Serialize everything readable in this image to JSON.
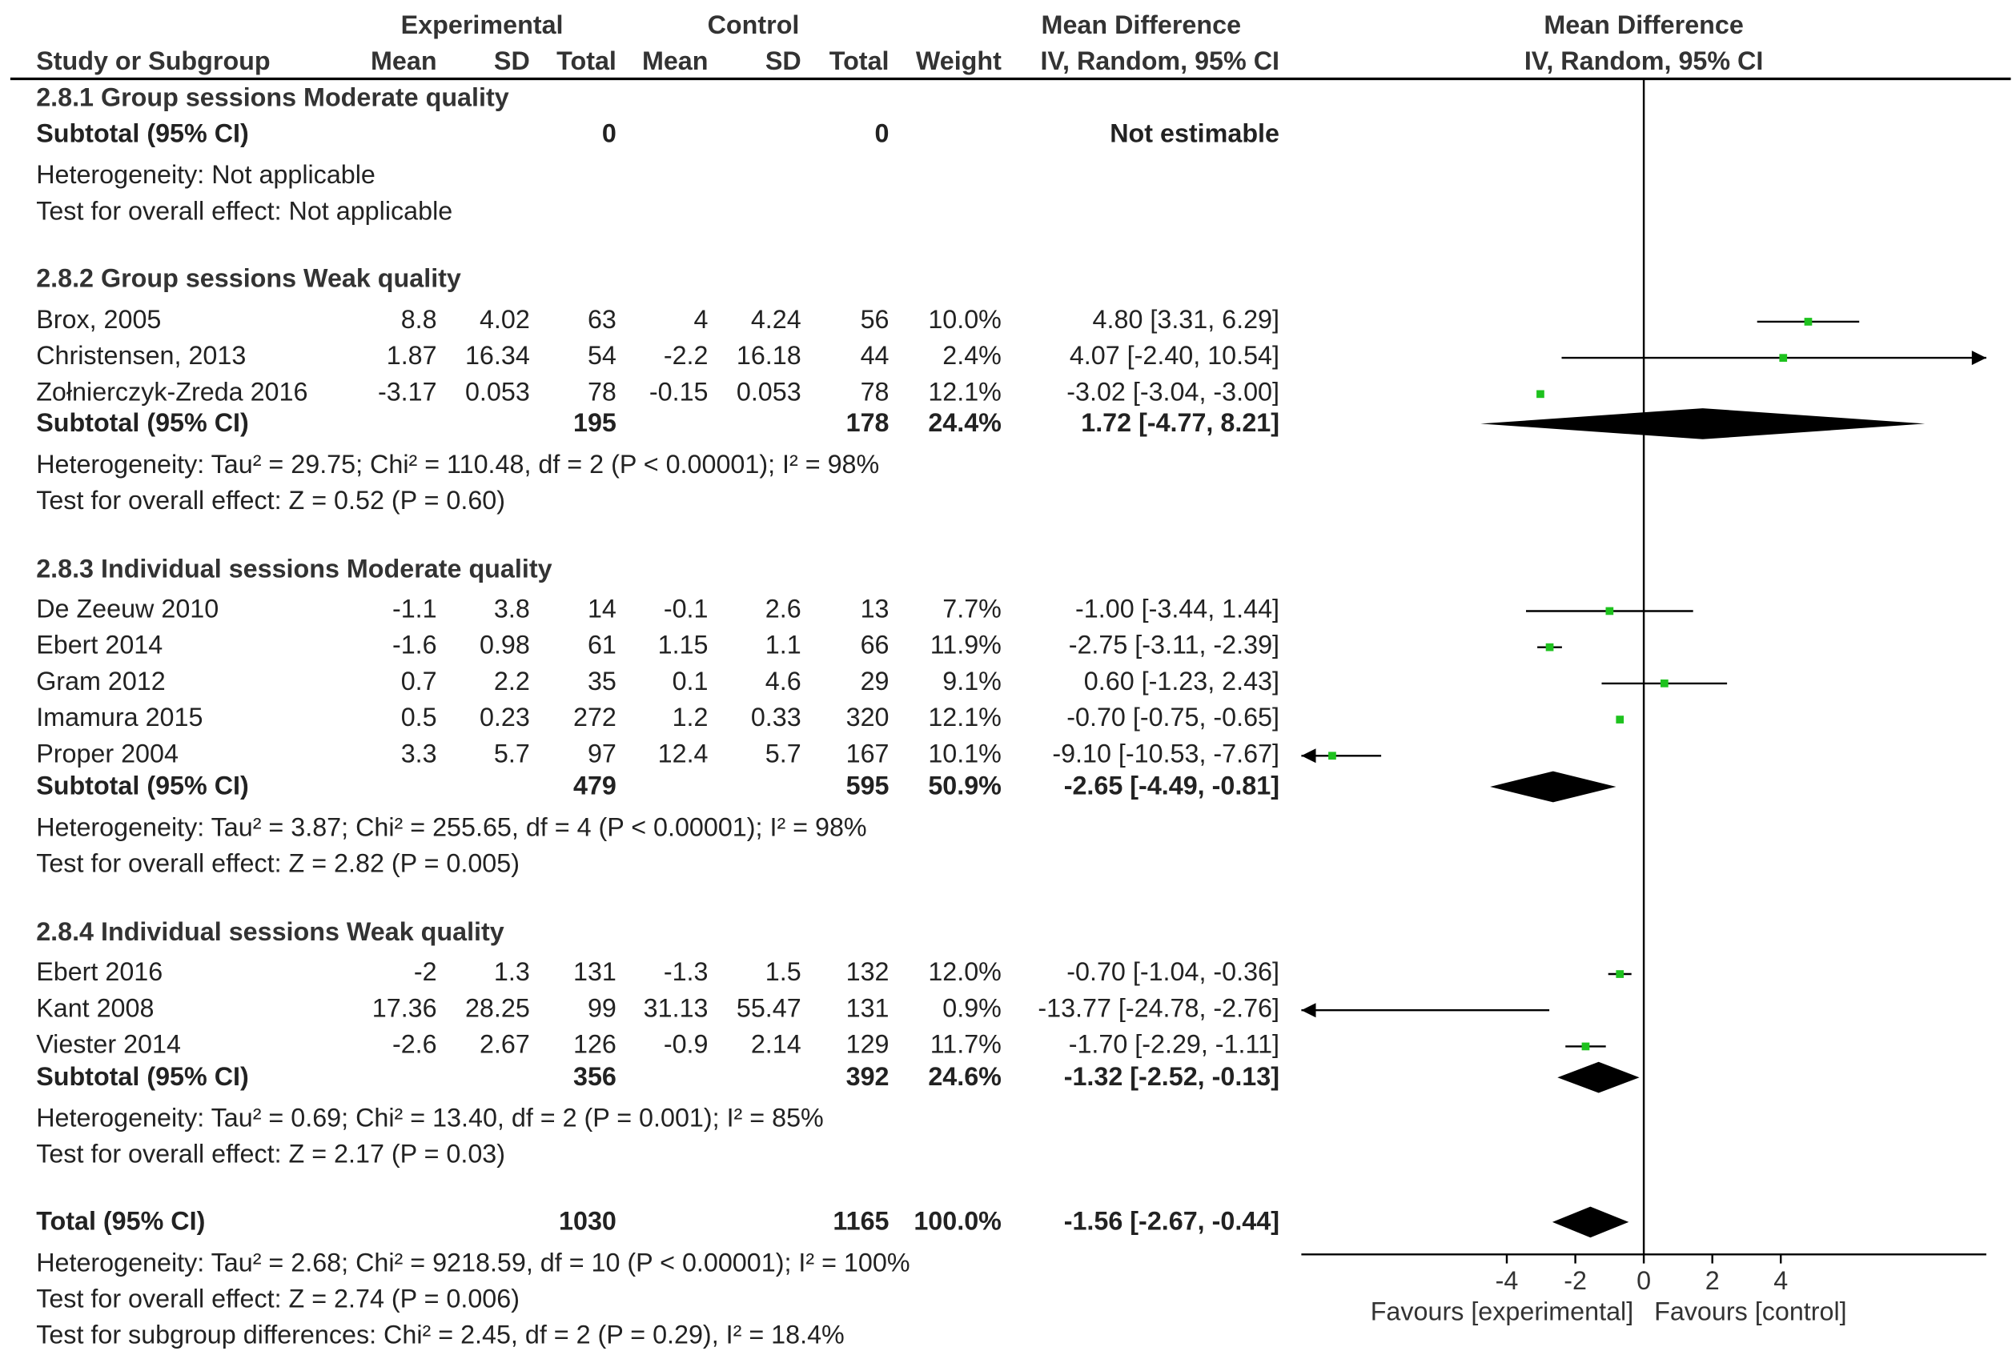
{
  "chart_data": {
    "type": "forest",
    "header": {
      "group_experimental": "Experimental",
      "group_control": "Control",
      "col_mean_difference": "Mean Difference",
      "col_plot_title": "Mean Difference",
      "study": "Study or Subgroup",
      "mean_e": "Mean",
      "sd_e": "SD",
      "total_e": "Total",
      "mean_c": "Mean",
      "sd_c": "SD",
      "total_c": "Total",
      "weight": "Weight",
      "method": "IV, Random, 95% CI",
      "method_plot": "IV, Random, 95% CI"
    },
    "subgroups": [
      {
        "title": "2.8.1 Group sessions Moderate quality",
        "studies": [],
        "subtotal": {
          "label": "Subtotal (95% CI)",
          "total_e": "0",
          "total_c": "0",
          "weight": "",
          "ci_text": "Not estimable",
          "md": null,
          "lo": null,
          "hi": null
        },
        "heterogeneity": "Heterogeneity: Not applicable",
        "overall": "Test for overall effect: Not applicable"
      },
      {
        "title": "2.8.2 Group sessions Weak quality",
        "studies": [
          {
            "name": "Brox, 2005",
            "mean_e": "8.8",
            "sd_e": "4.02",
            "total_e": "63",
            "mean_c": "4",
            "sd_c": "4.24",
            "total_c": "56",
            "weight": "10.0%",
            "ci_text": "4.80 [3.31, 6.29]",
            "md": 4.8,
            "lo": 3.31,
            "hi": 6.29
          },
          {
            "name": "Christensen, 2013",
            "mean_e": "1.87",
            "sd_e": "16.34",
            "total_e": "54",
            "mean_c": "-2.2",
            "sd_c": "16.18",
            "total_c": "44",
            "weight": "2.4%",
            "ci_text": "4.07 [-2.40, 10.54]",
            "md": 4.07,
            "lo": -2.4,
            "hi": 10.54
          },
          {
            "name": "Zołnierczyk-Zreda 2016",
            "mean_e": "-3.17",
            "sd_e": "0.053",
            "total_e": "78",
            "mean_c": "-0.15",
            "sd_c": "0.053",
            "total_c": "78",
            "weight": "12.1%",
            "ci_text": "-3.02 [-3.04, -3.00]",
            "md": -3.02,
            "lo": -3.04,
            "hi": -3.0
          }
        ],
        "subtotal": {
          "label": "Subtotal (95% CI)",
          "total_e": "195",
          "total_c": "178",
          "weight": "24.4%",
          "ci_text": "1.72 [-4.77, 8.21]",
          "md": 1.72,
          "lo": -4.77,
          "hi": 8.21
        },
        "heterogeneity": "Heterogeneity: Tau² = 29.75; Chi² = 110.48, df = 2 (P < 0.00001); I² = 98%",
        "overall": "Test for overall effect: Z = 0.52 (P = 0.60)"
      },
      {
        "title": "2.8.3 Individual sessions Moderate quality",
        "studies": [
          {
            "name": "De Zeeuw 2010",
            "mean_e": "-1.1",
            "sd_e": "3.8",
            "total_e": "14",
            "mean_c": "-0.1",
            "sd_c": "2.6",
            "total_c": "13",
            "weight": "7.7%",
            "ci_text": "-1.00 [-3.44, 1.44]",
            "md": -1.0,
            "lo": -3.44,
            "hi": 1.44
          },
          {
            "name": "Ebert 2014",
            "mean_e": "-1.6",
            "sd_e": "0.98",
            "total_e": "61",
            "mean_c": "1.15",
            "sd_c": "1.1",
            "total_c": "66",
            "weight": "11.9%",
            "ci_text": "-2.75 [-3.11, -2.39]",
            "md": -2.75,
            "lo": -3.11,
            "hi": -2.39
          },
          {
            "name": "Gram 2012",
            "mean_e": "0.7",
            "sd_e": "2.2",
            "total_e": "35",
            "mean_c": "0.1",
            "sd_c": "4.6",
            "total_c": "29",
            "weight": "9.1%",
            "ci_text": "0.60 [-1.23, 2.43]",
            "md": 0.6,
            "lo": -1.23,
            "hi": 2.43
          },
          {
            "name": "Imamura 2015",
            "mean_e": "0.5",
            "sd_e": "0.23",
            "total_e": "272",
            "mean_c": "1.2",
            "sd_c": "0.33",
            "total_c": "320",
            "weight": "12.1%",
            "ci_text": "-0.70 [-0.75, -0.65]",
            "md": -0.7,
            "lo": -0.75,
            "hi": -0.65
          },
          {
            "name": "Proper 2004",
            "mean_e": "3.3",
            "sd_e": "5.7",
            "total_e": "97",
            "mean_c": "12.4",
            "sd_c": "5.7",
            "total_c": "167",
            "weight": "10.1%",
            "ci_text": "-9.10 [-10.53, -7.67]",
            "md": -9.1,
            "lo": -10.53,
            "hi": -7.67
          }
        ],
        "subtotal": {
          "label": "Subtotal (95% CI)",
          "total_e": "479",
          "total_c": "595",
          "weight": "50.9%",
          "ci_text": "-2.65 [-4.49, -0.81]",
          "md": -2.65,
          "lo": -4.49,
          "hi": -0.81
        },
        "heterogeneity": "Heterogeneity: Tau² = 3.87; Chi² = 255.65, df = 4 (P < 0.00001); I² = 98%",
        "overall": "Test for overall effect: Z = 2.82 (P = 0.005)"
      },
      {
        "title": "2.8.4 Individual sessions Weak quality",
        "studies": [
          {
            "name": "Ebert 2016",
            "mean_e": "-2",
            "sd_e": "1.3",
            "total_e": "131",
            "mean_c": "-1.3",
            "sd_c": "1.5",
            "total_c": "132",
            "weight": "12.0%",
            "ci_text": "-0.70 [-1.04, -0.36]",
            "md": -0.7,
            "lo": -1.04,
            "hi": -0.36
          },
          {
            "name": "Kant 2008",
            "mean_e": "17.36",
            "sd_e": "28.25",
            "total_e": "99",
            "mean_c": "31.13",
            "sd_c": "55.47",
            "total_c": "131",
            "weight": "0.9%",
            "ci_text": "-13.77 [-24.78, -2.76]",
            "md": -13.77,
            "lo": -24.78,
            "hi": -2.76
          },
          {
            "name": "Viester 2014",
            "mean_e": "-2.6",
            "sd_e": "2.67",
            "total_e": "126",
            "mean_c": "-0.9",
            "sd_c": "2.14",
            "total_c": "129",
            "weight": "11.7%",
            "ci_text": "-1.70 [-2.29, -1.11]",
            "md": -1.7,
            "lo": -2.29,
            "hi": -1.11
          }
        ],
        "subtotal": {
          "label": "Subtotal (95% CI)",
          "total_e": "356",
          "total_c": "392",
          "weight": "24.6%",
          "ci_text": "-1.32 [-2.52, -0.13]",
          "md": -1.32,
          "lo": -2.52,
          "hi": -0.13
        },
        "heterogeneity": "Heterogeneity: Tau² = 0.69; Chi² = 13.40, df = 2 (P = 0.001); I² = 85%",
        "overall": "Test for overall effect: Z = 2.17 (P = 0.03)"
      }
    ],
    "total": {
      "label": "Total (95% CI)",
      "total_e": "1030",
      "total_c": "1165",
      "weight": "100.0%",
      "ci_text": "-1.56 [-2.67, -0.44]",
      "md": -1.56,
      "lo": -2.67,
      "hi": -0.44
    },
    "total_heterogeneity": "Heterogeneity: Tau² = 2.68; Chi² = 9218.59, df = 10 (P < 0.00001); I² = 100%",
    "total_overall": "Test for overall effect: Z = 2.74 (P = 0.006)",
    "subgroup_differences": "Test for subgroup differences: Chi² = 2.45, df = 2 (P = 0.29), I² = 18.4%",
    "axis": {
      "xlim": [
        -10,
        10
      ],
      "ticks": [
        -4,
        -2,
        0,
        2,
        4
      ],
      "tick_labels": [
        "-4",
        "-2",
        "0",
        "2",
        "4"
      ],
      "favours_left": "Favours [experimental]",
      "favours_right": "Favours [control]"
    },
    "colors": {
      "marker": "#1ec21e",
      "line": "#000000",
      "diamond": "#000000"
    }
  }
}
